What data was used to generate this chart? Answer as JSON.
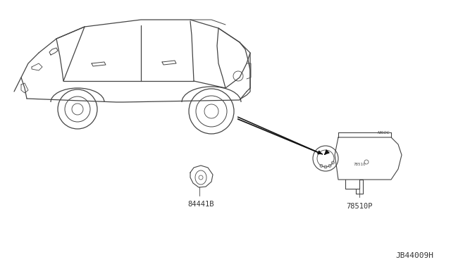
{
  "title": "",
  "bg_color": "#ffffff",
  "line_color": "#333333",
  "label_84441B": "84441B",
  "label_78510P": "78510P",
  "label_diagram_id": "JB44009H",
  "label_color": "#333333",
  "font_size_labels": 7.5,
  "font_size_diagram_id": 8,
  "car_outline_color": "#444444",
  "car_lw": 0.9,
  "part_lw": 0.8,
  "arrow_color": "#111111"
}
